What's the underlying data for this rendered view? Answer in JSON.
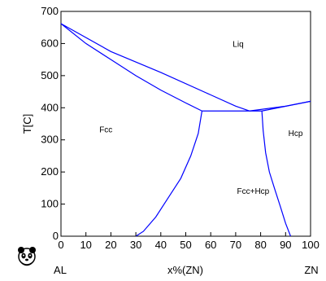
{
  "chart_data": {
    "type": "line",
    "xlabel": "x%(ZN)",
    "ylabel": "T[C]",
    "xlim": [
      0,
      100
    ],
    "ylim": [
      0,
      700
    ],
    "xticks": [
      0,
      10,
      20,
      30,
      40,
      50,
      60,
      70,
      80,
      90,
      100
    ],
    "yticks": [
      0,
      100,
      200,
      300,
      400,
      500,
      600,
      700
    ],
    "grid": false,
    "line_color": "#0000ff",
    "curves": [
      {
        "x": [
          0,
          20,
          40,
          60,
          70,
          75.5
        ],
        "y": [
          662,
          575,
          510,
          440,
          405,
          390
        ]
      },
      {
        "x": [
          0,
          10,
          20,
          30,
          40,
          50,
          56.5
        ],
        "y": [
          662,
          600,
          550,
          500,
          455,
          415,
          390
        ]
      },
      {
        "x": [
          56.5,
          75.5,
          80.5
        ],
        "y": [
          390,
          390,
          390
        ]
      },
      {
        "x": [
          75.5,
          90,
          100
        ],
        "y": [
          390,
          405,
          420
        ]
      },
      {
        "x": [
          80.5,
          100
        ],
        "y": [
          390,
          420
        ]
      },
      {
        "x": [
          56.5,
          55,
          52,
          48,
          43,
          38,
          33,
          30
        ],
        "y": [
          390,
          320,
          250,
          180,
          120,
          60,
          15,
          0
        ]
      },
      {
        "x": [
          80.5,
          81,
          82,
          83.5,
          85.5,
          88,
          90,
          92
        ],
        "y": [
          390,
          330,
          260,
          200,
          150,
          90,
          40,
          0
        ]
      }
    ],
    "region_labels": [
      {
        "text": "Liq",
        "x": 71,
        "y": 590
      },
      {
        "text": "Fcc",
        "x": 18,
        "y": 323
      },
      {
        "text": "Hcp",
        "x": 94,
        "y": 312
      },
      {
        "text": "Fcc+Hcp",
        "x": 77,
        "y": 132
      }
    ]
  },
  "footer": {
    "left_label": "AL",
    "right_label": "ZN",
    "logo_icon": "panda-icon"
  }
}
